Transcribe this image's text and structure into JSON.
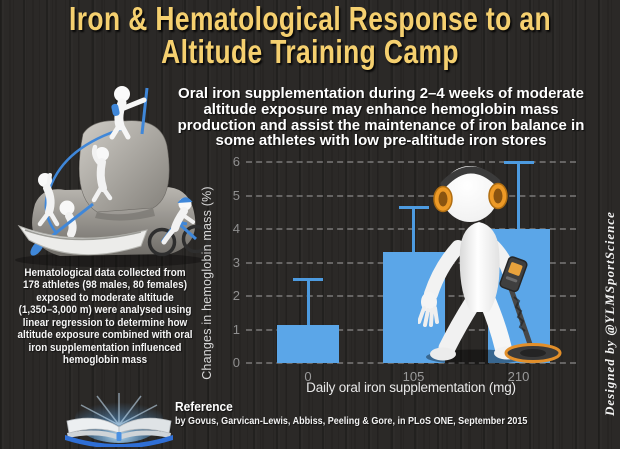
{
  "title": {
    "line1": "Iron & Hematological Response to an",
    "line2": "Altitude Training Camp",
    "color": "#F5D06F"
  },
  "subtitle": {
    "lines": [
      "Oral iron supplementation during 2–4 weeks of moderate",
      "altitude exposure may enhance hemoglobin mass",
      "production and assist the maintenance of iron balance in",
      "some athletes with low pre-altitude iron stores"
    ]
  },
  "left_note": {
    "lines": [
      "Hematological data collected from",
      "178 athletes (98 males, 80 females)",
      "exposed to moderate altitude",
      "(1,350–3,000 m) were analysed using",
      "linear regression to determine how",
      "altitude exposure combined with oral",
      "iron supplementation influenced",
      "hemoglobin mass"
    ]
  },
  "chart_data": {
    "type": "bar",
    "title": "",
    "xlabel": "Daily oral iron supplementation (mg)",
    "ylabel": "Changes in hemoglobin mass (%)",
    "categories": [
      "0",
      "105",
      "210"
    ],
    "values": [
      1.13,
      3.3,
      4.0
    ],
    "error_upper": [
      2.5,
      4.65,
      6.0
    ],
    "ylim": [
      0,
      6
    ],
    "yticks": [
      0,
      1,
      2,
      3,
      4,
      5,
      6
    ],
    "grid": "dashed-horizontal",
    "legend": "none",
    "bar_color": "#5BA6E8",
    "error_color": "#4D9BE0"
  },
  "reference": {
    "heading": "Reference",
    "citation": "by Govus, Garvican-Lewis, Abbiss, Peeling & Gore, in PLoS ONE, September 2015"
  },
  "credit": {
    "text": "Designed by @YLMSportScience"
  },
  "illustrations": {
    "climbers": "climbers-on-mountain (hiker, climbers, rower, cyclist 3D figures)",
    "detector_figure": "white figure with orange headphones holding metal detector",
    "book": "glowing open book"
  },
  "colors": {
    "background": "#2B2927",
    "title_yellow": "#F5D06F",
    "bar_blue": "#5BA6E8",
    "error_blue": "#4D9BE0",
    "headphone_orange": "#ED9A26",
    "accent_blue": "#3F87D9",
    "book_blue": "#2F6FD6",
    "text_white": "#FFFFFF",
    "tick_gray": "#9A9A9A"
  }
}
